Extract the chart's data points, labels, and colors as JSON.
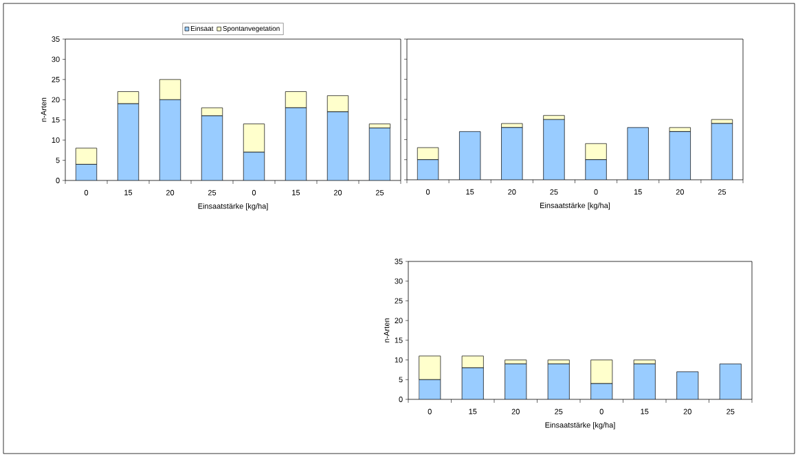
{
  "chart_data": [
    {
      "type": "bar",
      "stacked": true,
      "ylabel": "n-Arten",
      "xlabel": "Einsaatstärke [kg/ha]",
      "categories": [
        "0",
        "15",
        "20",
        "25",
        "0",
        "15",
        "20",
        "25"
      ],
      "ylim": [
        0,
        35
      ],
      "yticks": [
        0,
        5,
        10,
        15,
        20,
        25,
        30,
        35
      ],
      "legend": "top",
      "series": [
        {
          "name": "Einsaat",
          "color": "#99ccff",
          "values": [
            4,
            19,
            20,
            16,
            7,
            18,
            17,
            13
          ]
        },
        {
          "name": "Spontanvegetation",
          "color": "#ffffcc",
          "values": [
            4,
            3,
            5,
            2,
            7,
            4,
            4,
            1
          ]
        }
      ]
    },
    {
      "type": "bar",
      "stacked": true,
      "xlabel": "Einsaatstärke [kg/ha]",
      "categories": [
        "0",
        "15",
        "20",
        "25",
        "0",
        "15",
        "20",
        "25"
      ],
      "ylim": [
        0,
        35
      ],
      "tick_labels": "x",
      "yticks": [
        {
          "value": 0,
          "label": null
        },
        {
          "value": 5,
          "label": null
        },
        {
          "value": 10,
          "label": null
        },
        {
          "value": 15,
          "label": null
        },
        {
          "value": 20,
          "label": null
        },
        {
          "value": 25,
          "label": null
        },
        {
          "value": 30,
          "label": null
        },
        {
          "value": 35,
          "label": null
        }
      ],
      "series": [
        {
          "color": "#99ccff",
          "values": [
            5,
            12,
            13,
            15,
            5,
            13,
            12,
            14
          ]
        },
        {
          "color": "#ffffcc",
          "values": [
            3,
            0,
            1,
            1,
            4,
            0,
            1,
            1
          ]
        }
      ]
    },
    {
      "type": "bar",
      "stacked": true,
      "ylabel": "n-Arten",
      "xlabel": "Einsaatstärke [kg/ha]",
      "categories": [
        "0",
        "15",
        "20",
        "25",
        "0",
        "15",
        "20",
        "25"
      ],
      "ylim": [
        0,
        35
      ],
      "yticks": [
        0,
        5,
        10,
        15,
        20,
        25,
        30,
        35
      ],
      "series": [
        {
          "color": "#99ccff",
          "values": [
            5,
            8,
            9,
            9,
            4,
            9,
            7,
            9
          ]
        },
        {
          "color": "#ffffcc",
          "values": [
            6,
            3,
            1,
            1,
            6,
            1,
            0,
            0
          ]
        }
      ]
    }
  ]
}
